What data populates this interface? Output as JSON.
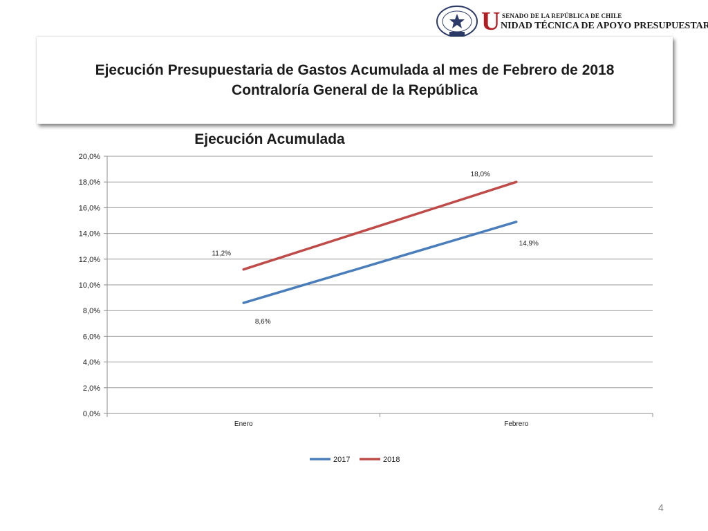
{
  "logo": {
    "seal_text": "REPÚBLICA DE CHILE · SENADO",
    "top_line": "SENADO DE LA REPÚBLICA DE CHILE",
    "initial": "U",
    "bottom_line": "NIDAD TÉCNICA DE APOYO PRESUPUESTARIO",
    "color": "#b01e23"
  },
  "header": {
    "title_line1": "Ejecución Presupuestaria de Gastos Acumulada al mes de Febrero de 2018",
    "title_line2": "Contraloría General de la República"
  },
  "chart_data": {
    "type": "line",
    "title": "Ejecución Acumulada",
    "categories": [
      "Enero",
      "Febrero"
    ],
    "series": [
      {
        "name": "2017",
        "values": [
          8.6,
          14.9
        ],
        "labels": [
          "8,6%",
          "14,9%"
        ],
        "color": "#4a7ebb"
      },
      {
        "name": "2018",
        "values": [
          11.2,
          18.0
        ],
        "labels": [
          "11,2%",
          "18,0%"
        ],
        "color": "#be4b48"
      }
    ],
    "ylim": [
      0,
      20
    ],
    "yticks": [
      0,
      2,
      4,
      6,
      8,
      10,
      12,
      14,
      16,
      18,
      20
    ],
    "ytick_labels": [
      "0,0%",
      "2,0%",
      "4,0%",
      "6,0%",
      "8,0%",
      "10,0%",
      "12,0%",
      "14,0%",
      "16,0%",
      "18,0%",
      "20,0%"
    ],
    "grid": true,
    "legend": "bottom",
    "xlabel": "",
    "ylabel": ""
  },
  "footer": {
    "page_number": "4"
  }
}
